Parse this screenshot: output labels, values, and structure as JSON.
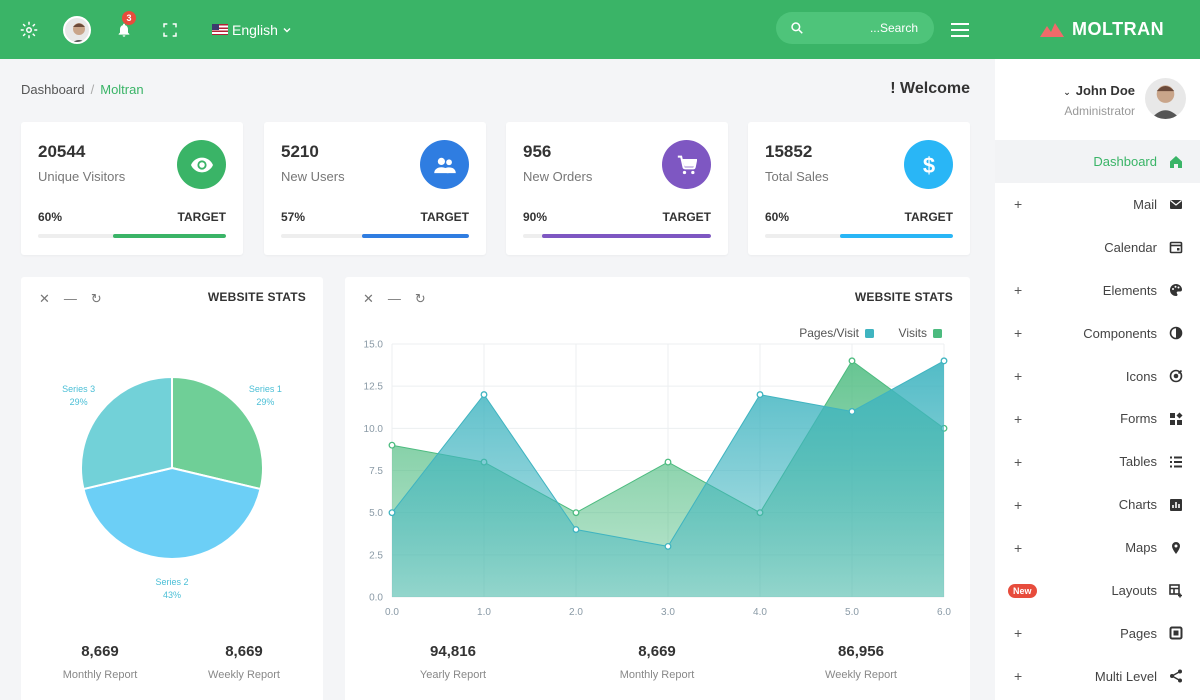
{
  "header": {
    "notification_count": "3",
    "language": "English",
    "search_placeholder": "...Search",
    "brand": "MOLTRAN"
  },
  "breadcrumb": {
    "home": "Dashboard",
    "current": "Moltran"
  },
  "welcome": "! Welcome",
  "stats": [
    {
      "value": "20544",
      "label": "Unique Visitors",
      "percent": "60%",
      "target": "TARGET",
      "fill": 0.6,
      "color": "#3ab467",
      "icon": "eye-icon"
    },
    {
      "value": "5210",
      "label": "New Users",
      "percent": "57%",
      "target": "TARGET",
      "fill": 0.57,
      "color": "#2f7de1",
      "icon": "users-icon"
    },
    {
      "value": "956",
      "label": "New Orders",
      "percent": "90%",
      "target": "TARGET",
      "fill": 0.9,
      "color": "#7e57c2",
      "icon": "cart-icon"
    },
    {
      "value": "15852",
      "label": "Total Sales",
      "percent": "60%",
      "target": "TARGET",
      "fill": 0.6,
      "color": "#29b6f6",
      "icon": "dollar-icon"
    }
  ],
  "pie_panel": {
    "title": "WEBSITE STATS",
    "footer": [
      {
        "value": "8,669",
        "label": "Monthly Report"
      },
      {
        "value": "8,669",
        "label": "Weekly Report"
      }
    ]
  },
  "area_panel": {
    "title": "WEBSITE STATS",
    "footer": [
      {
        "value": "94,816",
        "label": "Yearly Report"
      },
      {
        "value": "8,669",
        "label": "Monthly Report"
      },
      {
        "value": "86,956",
        "label": "Weekly Report"
      }
    ]
  },
  "chart_data": [
    {
      "type": "pie",
      "title": "",
      "slices": [
        {
          "name": "Series 1",
          "label": "29%",
          "value": 29,
          "color": "#6fcf97"
        },
        {
          "name": "Series 2",
          "label": "43%",
          "value": 43,
          "color": "#6ccff6"
        },
        {
          "name": "Series 3",
          "label": "29%",
          "value": 29,
          "color": "#72d1d8"
        }
      ]
    },
    {
      "type": "area",
      "title": "",
      "xlabel": "",
      "ylabel": "",
      "x": [
        0,
        1,
        2,
        3,
        4,
        5,
        6
      ],
      "x_ticks": [
        "0.0",
        "1.0",
        "2.0",
        "3.0",
        "4.0",
        "5.0",
        "6.0"
      ],
      "y_ticks": [
        "0.0",
        "2.5",
        "5.0",
        "7.5",
        "10.0",
        "12.5",
        "15.0"
      ],
      "xlim": [
        0,
        6
      ],
      "ylim": [
        0,
        15
      ],
      "grid": true,
      "legend_position": "top-right",
      "series": [
        {
          "name": "Visits",
          "values": [
            9,
            8,
            5,
            8,
            5,
            14,
            10
          ],
          "color": "#4cbb7f"
        },
        {
          "name": "Pages/Visit",
          "values": [
            5,
            12,
            4,
            3,
            12,
            11,
            14
          ],
          "color": "#3fb4c0"
        }
      ]
    }
  ],
  "user": {
    "name": "John Doe",
    "role": "Administrator"
  },
  "sidebar": {
    "items": [
      {
        "label": "Dashboard",
        "plus": false,
        "icon": "home-icon",
        "active": true
      },
      {
        "label": "Mail",
        "plus": true,
        "icon": "mail-icon"
      },
      {
        "label": "Calendar",
        "plus": false,
        "icon": "calendar-icon"
      },
      {
        "label": "Elements",
        "plus": true,
        "icon": "palette-icon"
      },
      {
        "label": "Components",
        "plus": true,
        "icon": "contrast-icon"
      },
      {
        "label": "Icons",
        "plus": true,
        "icon": "target-icon"
      },
      {
        "label": "Forms",
        "plus": true,
        "icon": "widgets-icon"
      },
      {
        "label": "Tables",
        "plus": true,
        "icon": "list-icon"
      },
      {
        "label": "Charts",
        "plus": true,
        "icon": "chart-icon"
      },
      {
        "label": "Maps",
        "plus": true,
        "icon": "pin-icon"
      },
      {
        "label": "Layouts",
        "plus": false,
        "badge": "New",
        "icon": "layout-add-icon"
      },
      {
        "label": "Pages",
        "plus": true,
        "icon": "pages-icon"
      },
      {
        "label": "Multi Level",
        "plus": true,
        "icon": "share-icon"
      }
    ]
  }
}
